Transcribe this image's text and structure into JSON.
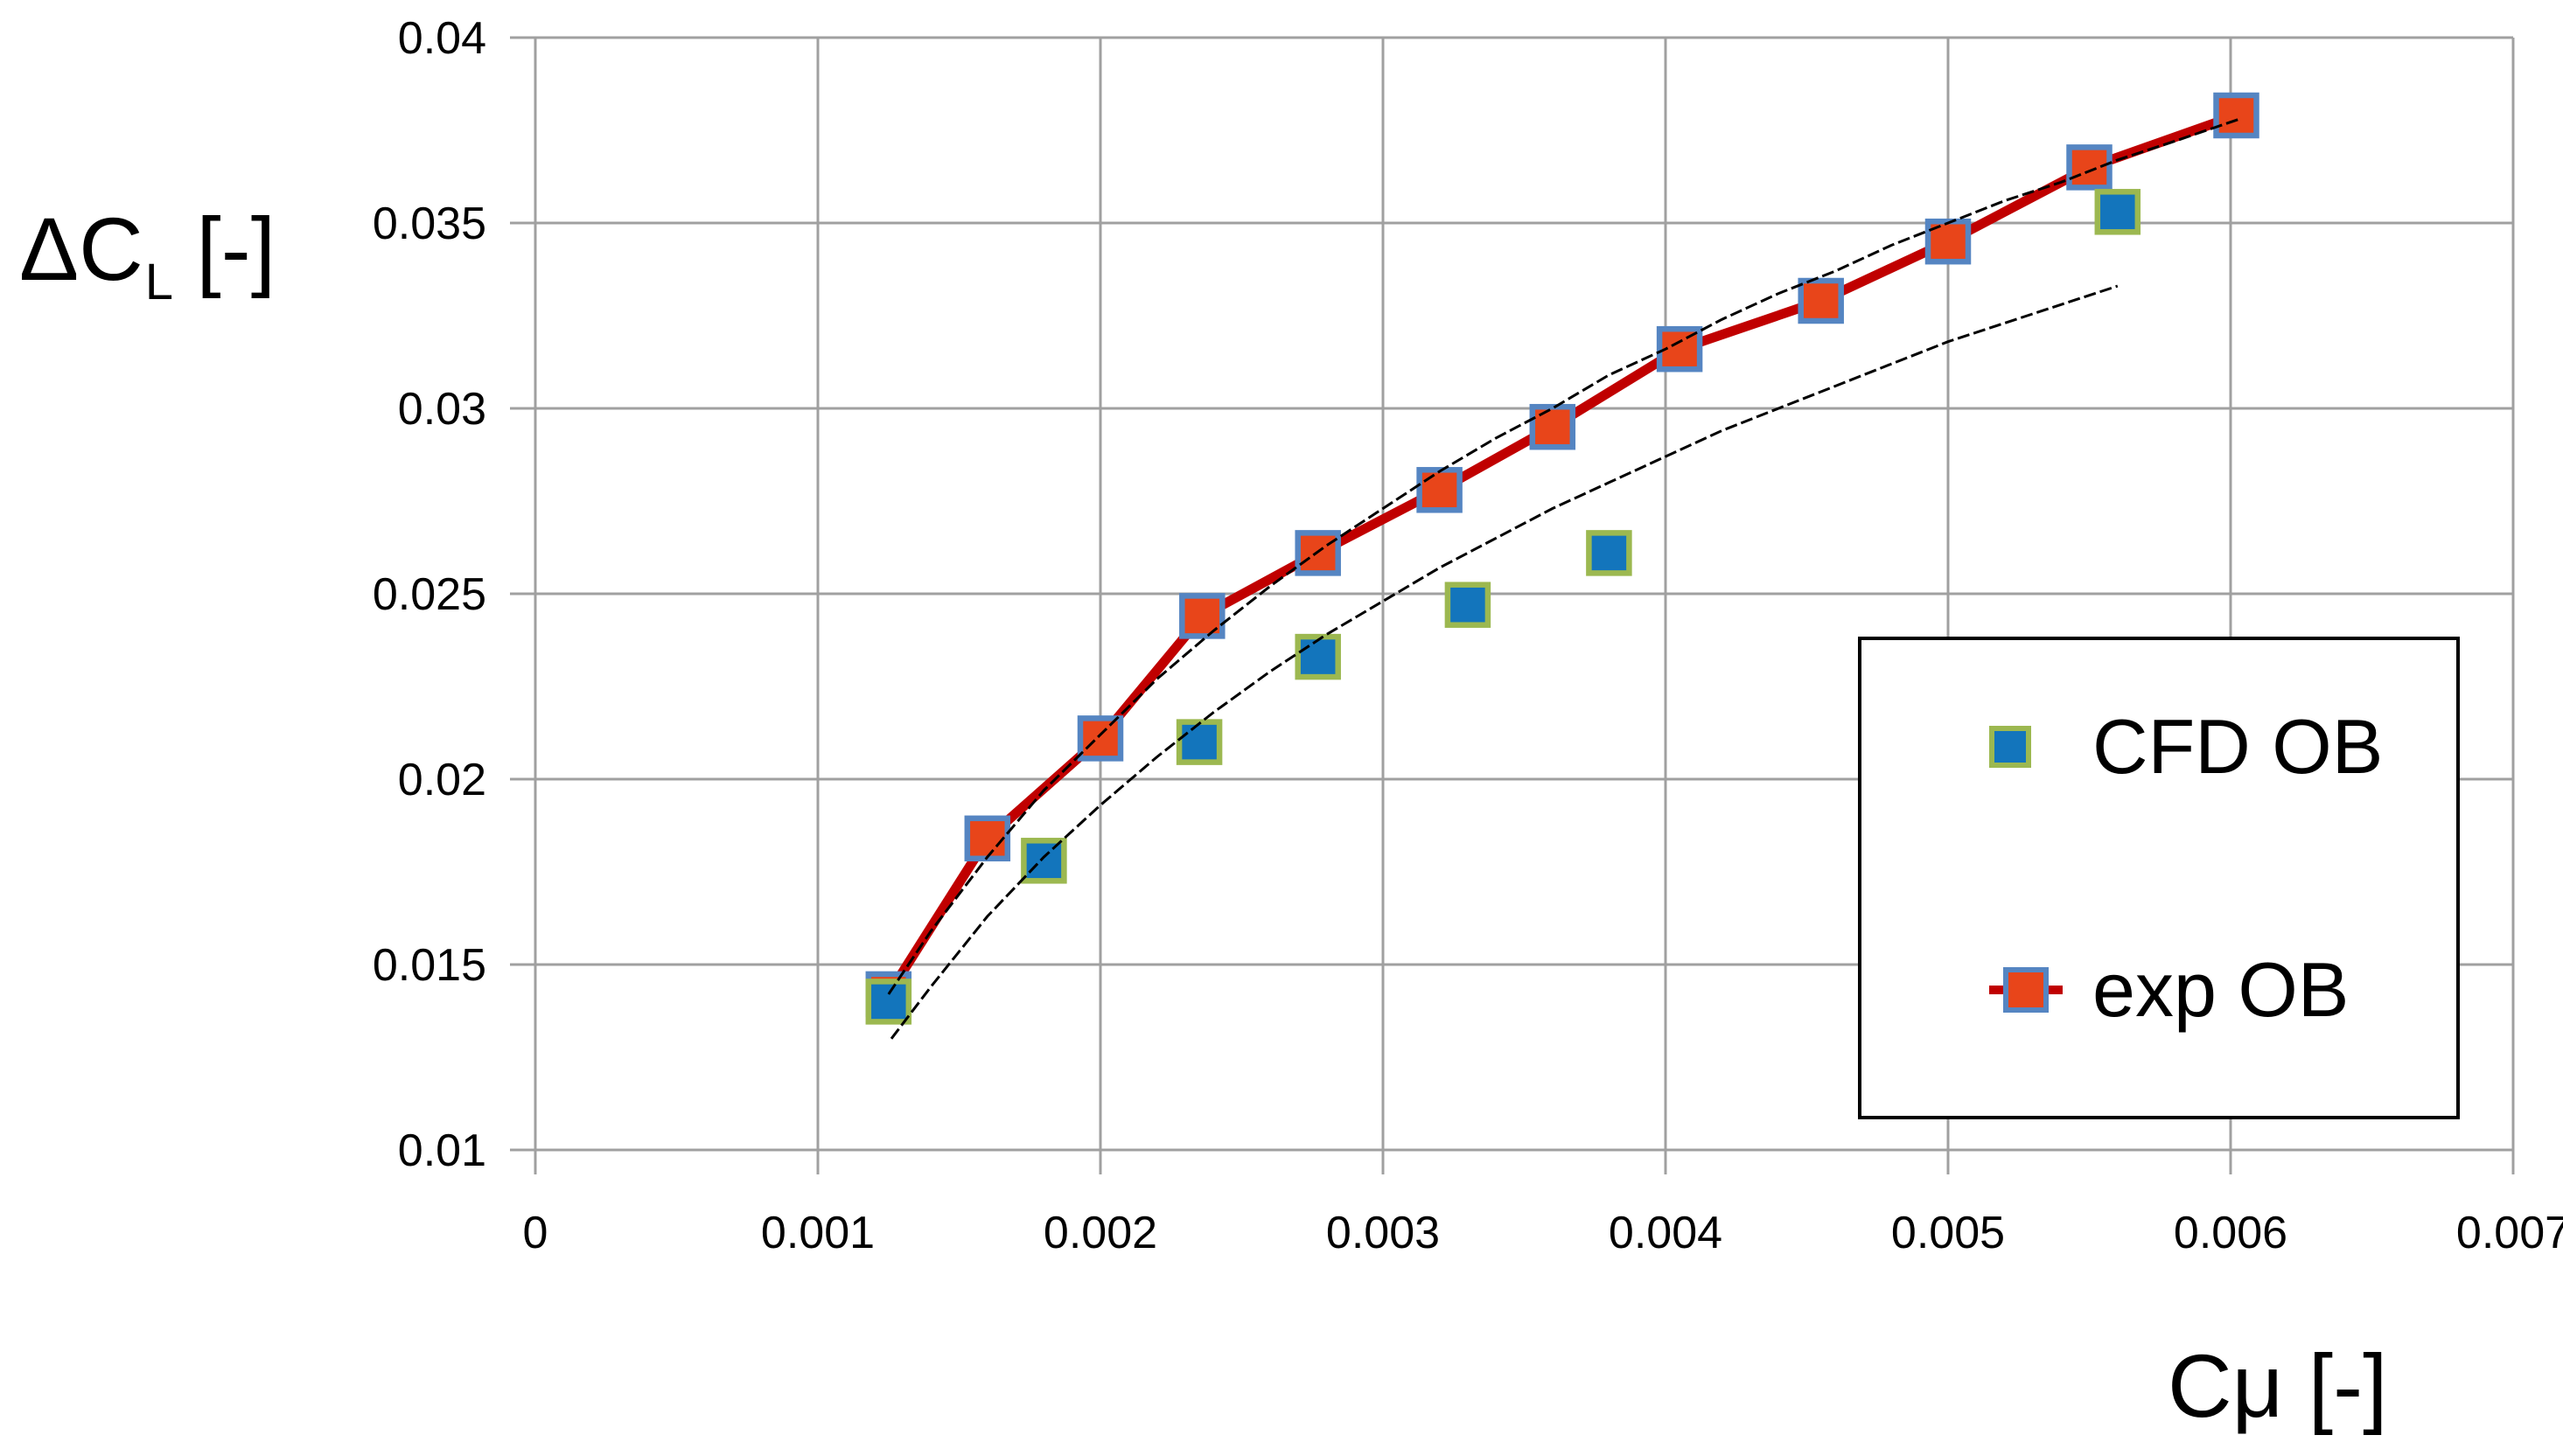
{
  "y_axis": {
    "title": {
      "prefix": "ΔC",
      "subscript": "L",
      "suffix": " [-]"
    },
    "tick_labels": [
      "0.01",
      "0.015",
      "0.02",
      "0.025",
      "0.03",
      "0.035",
      "0.04"
    ],
    "range": [
      0.01,
      0.04
    ]
  },
  "x_axis": {
    "title": "Cμ [-]",
    "tick_labels": [
      "0",
      "0.001",
      "0.002",
      "0.003",
      "0.004",
      "0.005",
      "0.006",
      "0.007"
    ],
    "range": [
      0,
      0.007
    ]
  },
  "legend": {
    "position": "right-middle",
    "items": [
      {
        "label": "CFD OB",
        "marker": "square",
        "fill": "#1375BC",
        "stroke": "#9CB850"
      },
      {
        "label": "exp OB",
        "marker": "square-with-line",
        "fill": "#E8451A",
        "stroke": "#5585C2",
        "line_color": "#C00000"
      }
    ]
  },
  "chart_data": {
    "type": "scatter",
    "title": "",
    "xlabel": "Cμ [-]",
    "ylabel": "ΔC_L [-]",
    "xlim": [
      0,
      0.007
    ],
    "ylim": [
      0.01,
      0.04
    ],
    "grid": true,
    "grid_color": "#A0A0A0",
    "legend_position": "right-middle",
    "series": [
      {
        "name": "exp OB",
        "type": "line+scatter",
        "marker_fill": "#E8451A",
        "marker_stroke": "#5585C2",
        "line_color": "#C00000",
        "points": [
          [
            0.00125,
            0.0142
          ],
          [
            0.0016,
            0.0184
          ],
          [
            0.002,
            0.0211
          ],
          [
            0.00236,
            0.0244
          ],
          [
            0.00277,
            0.0261
          ],
          [
            0.0032,
            0.0278
          ],
          [
            0.0036,
            0.0295
          ],
          [
            0.00405,
            0.0316
          ],
          [
            0.00455,
            0.0329
          ],
          [
            0.005,
            0.0345
          ],
          [
            0.0055,
            0.0365
          ],
          [
            0.00602,
            0.0379
          ]
        ]
      },
      {
        "name": "CFD OB",
        "type": "scatter",
        "marker_fill": "#1375BC",
        "marker_stroke": "#9CB850",
        "points": [
          [
            0.00125,
            0.014
          ],
          [
            0.0018,
            0.0178
          ],
          [
            0.00235,
            0.021
          ],
          [
            0.00277,
            0.0233
          ],
          [
            0.0033,
            0.0247
          ],
          [
            0.0038,
            0.0261
          ],
          [
            0.0056,
            0.0353
          ]
        ]
      },
      {
        "name": "log trendline through exp OB",
        "type": "trendline",
        "line_color": "#000000",
        "points": [
          [
            0.00125,
            0.0142
          ],
          [
            0.0014,
            0.0159
          ],
          [
            0.0016,
            0.0179
          ],
          [
            0.0018,
            0.0197
          ],
          [
            0.002,
            0.0212
          ],
          [
            0.0022,
            0.0227
          ],
          [
            0.0024,
            0.024
          ],
          [
            0.0026,
            0.0252
          ],
          [
            0.0028,
            0.0263
          ],
          [
            0.003,
            0.0273
          ],
          [
            0.0032,
            0.0283
          ],
          [
            0.0034,
            0.0292
          ],
          [
            0.0036,
            0.03
          ],
          [
            0.0038,
            0.0309
          ],
          [
            0.004,
            0.0316
          ],
          [
            0.0042,
            0.0324
          ],
          [
            0.0044,
            0.0331
          ],
          [
            0.0046,
            0.0337
          ],
          [
            0.0048,
            0.0344
          ],
          [
            0.005,
            0.035
          ],
          [
            0.0052,
            0.0356
          ],
          [
            0.0054,
            0.0361
          ],
          [
            0.0056,
            0.0367
          ],
          [
            0.0058,
            0.0372
          ],
          [
            0.00603,
            0.0378
          ]
        ]
      },
      {
        "name": "log trendline through CFD OB",
        "type": "trendline",
        "line_color": "#000000",
        "points": [
          [
            0.00126,
            0.013
          ],
          [
            0.0014,
            0.0144
          ],
          [
            0.0016,
            0.0163
          ],
          [
            0.0018,
            0.0179
          ],
          [
            0.002,
            0.0193
          ],
          [
            0.0022,
            0.0206
          ],
          [
            0.0024,
            0.0218
          ],
          [
            0.0026,
            0.0229
          ],
          [
            0.0028,
            0.0239
          ],
          [
            0.003,
            0.0248
          ],
          [
            0.0032,
            0.0257
          ],
          [
            0.0034,
            0.0265
          ],
          [
            0.0036,
            0.0273
          ],
          [
            0.0038,
            0.028
          ],
          [
            0.004,
            0.0287
          ],
          [
            0.0042,
            0.0294
          ],
          [
            0.0044,
            0.03
          ],
          [
            0.0046,
            0.0306
          ],
          [
            0.0048,
            0.0312
          ],
          [
            0.005,
            0.0318
          ],
          [
            0.0052,
            0.0323
          ],
          [
            0.0054,
            0.0328
          ],
          [
            0.0056,
            0.0333
          ]
        ]
      }
    ]
  }
}
